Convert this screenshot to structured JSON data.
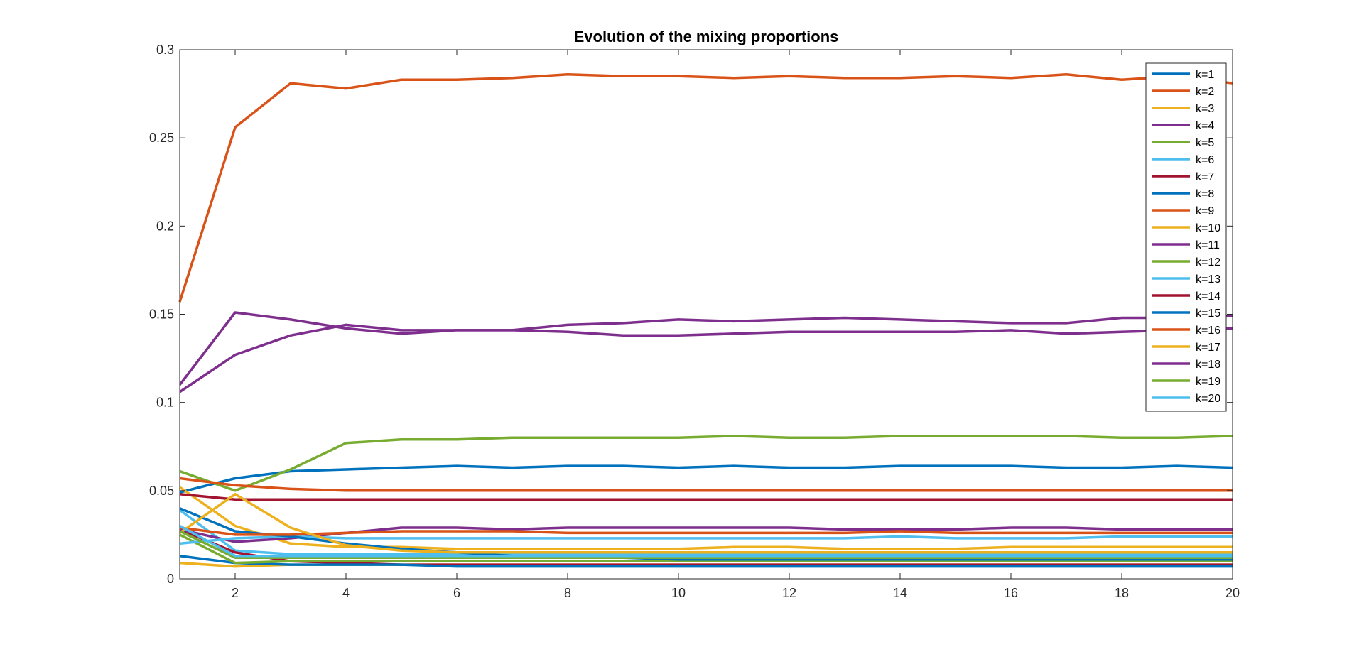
{
  "chart_data": {
    "type": "line",
    "title": "Evolution of the mixing proportions",
    "xlabel": "",
    "ylabel": "",
    "xlim": [
      1,
      20
    ],
    "ylim": [
      0,
      0.3
    ],
    "xticks": [
      2,
      4,
      6,
      8,
      10,
      12,
      14,
      16,
      18,
      20
    ],
    "yticks": [
      0,
      0.05,
      0.1,
      0.15,
      0.2,
      0.25,
      0.3
    ],
    "ytick_labels": [
      "0",
      "0.05",
      "0.1",
      "0.15",
      "0.2",
      "0.25",
      "0.3"
    ],
    "grid": false,
    "legend_position": "top-right",
    "x": [
      1,
      2,
      3,
      4,
      5,
      6,
      7,
      8,
      9,
      10,
      11,
      12,
      13,
      14,
      15,
      16,
      17,
      18,
      19,
      20
    ],
    "series": [
      {
        "name": "k=1",
        "color": "#0072BD",
        "values": [
          0.049,
          0.057,
          0.061,
          0.062,
          0.063,
          0.064,
          0.063,
          0.064,
          0.064,
          0.063,
          0.064,
          0.063,
          0.063,
          0.064,
          0.064,
          0.064,
          0.063,
          0.063,
          0.064,
          0.063
        ]
      },
      {
        "name": "k=2",
        "color": "#D95319",
        "values": [
          0.157,
          0.256,
          0.281,
          0.278,
          0.283,
          0.283,
          0.284,
          0.286,
          0.285,
          0.285,
          0.284,
          0.285,
          0.284,
          0.284,
          0.285,
          0.284,
          0.286,
          0.283,
          0.285,
          0.281
        ]
      },
      {
        "name": "k=3",
        "color": "#EDB120",
        "values": [
          0.009,
          0.007,
          0.008,
          0.008,
          0.008,
          0.008,
          0.008,
          0.008,
          0.008,
          0.008,
          0.008,
          0.008,
          0.008,
          0.008,
          0.008,
          0.008,
          0.008,
          0.008,
          0.008,
          0.008
        ]
      },
      {
        "name": "k=4",
        "color": "#7E2F8E",
        "values": [
          0.106,
          0.127,
          0.138,
          0.144,
          0.141,
          0.141,
          0.141,
          0.14,
          0.138,
          0.138,
          0.139,
          0.14,
          0.14,
          0.14,
          0.14,
          0.141,
          0.139,
          0.14,
          0.141,
          0.142
        ]
      },
      {
        "name": "k=5",
        "color": "#77AC30",
        "values": [
          0.061,
          0.05,
          0.062,
          0.077,
          0.079,
          0.079,
          0.08,
          0.08,
          0.08,
          0.08,
          0.081,
          0.08,
          0.08,
          0.081,
          0.081,
          0.081,
          0.081,
          0.08,
          0.08,
          0.081
        ]
      },
      {
        "name": "k=6",
        "color": "#4DBEEE",
        "values": [
          0.039,
          0.016,
          0.014,
          0.014,
          0.014,
          0.014,
          0.014,
          0.014,
          0.014,
          0.014,
          0.014,
          0.014,
          0.014,
          0.014,
          0.014,
          0.014,
          0.014,
          0.014,
          0.014,
          0.014
        ]
      },
      {
        "name": "k=7",
        "color": "#A2142F",
        "values": [
          0.028,
          0.015,
          0.01,
          0.009,
          0.008,
          0.008,
          0.008,
          0.008,
          0.008,
          0.008,
          0.008,
          0.008,
          0.008,
          0.008,
          0.008,
          0.008,
          0.008,
          0.008,
          0.008,
          0.008
        ]
      },
      {
        "name": "k=8",
        "color": "#0072BD",
        "values": [
          0.013,
          0.009,
          0.008,
          0.008,
          0.008,
          0.007,
          0.007,
          0.007,
          0.007,
          0.007,
          0.007,
          0.007,
          0.007,
          0.007,
          0.007,
          0.007,
          0.007,
          0.007,
          0.007,
          0.007
        ]
      },
      {
        "name": "k=9",
        "color": "#D95319",
        "values": [
          0.057,
          0.053,
          0.051,
          0.05,
          0.05,
          0.05,
          0.05,
          0.05,
          0.05,
          0.05,
          0.05,
          0.05,
          0.05,
          0.05,
          0.05,
          0.05,
          0.05,
          0.05,
          0.05,
          0.05
        ]
      },
      {
        "name": "k=10",
        "color": "#EDB120",
        "values": [
          0.052,
          0.03,
          0.02,
          0.018,
          0.018,
          0.017,
          0.017,
          0.017,
          0.017,
          0.017,
          0.018,
          0.018,
          0.017,
          0.017,
          0.017,
          0.018,
          0.018,
          0.018,
          0.018,
          0.018
        ]
      },
      {
        "name": "k=11",
        "color": "#7E2F8E",
        "values": [
          0.028,
          0.021,
          0.023,
          0.026,
          0.029,
          0.029,
          0.028,
          0.029,
          0.029,
          0.029,
          0.029,
          0.029,
          0.028,
          0.028,
          0.028,
          0.029,
          0.029,
          0.028,
          0.028,
          0.028
        ]
      },
      {
        "name": "k=12",
        "color": "#77AC30",
        "values": [
          0.025,
          0.009,
          0.01,
          0.01,
          0.01,
          0.01,
          0.01,
          0.01,
          0.01,
          0.01,
          0.01,
          0.01,
          0.01,
          0.01,
          0.01,
          0.01,
          0.01,
          0.01,
          0.01,
          0.01
        ]
      },
      {
        "name": "k=13",
        "color": "#4DBEEE",
        "values": [
          0.02,
          0.023,
          0.024,
          0.023,
          0.023,
          0.023,
          0.023,
          0.023,
          0.023,
          0.023,
          0.023,
          0.023,
          0.023,
          0.024,
          0.023,
          0.023,
          0.023,
          0.024,
          0.024,
          0.024
        ]
      },
      {
        "name": "k=14",
        "color": "#A2142F",
        "values": [
          0.048,
          0.045,
          0.045,
          0.045,
          0.045,
          0.045,
          0.045,
          0.045,
          0.045,
          0.045,
          0.045,
          0.045,
          0.045,
          0.045,
          0.045,
          0.045,
          0.045,
          0.045,
          0.045,
          0.045
        ]
      },
      {
        "name": "k=15",
        "color": "#0072BD",
        "values": [
          0.04,
          0.027,
          0.024,
          0.02,
          0.017,
          0.015,
          0.013,
          0.012,
          0.012,
          0.011,
          0.011,
          0.011,
          0.011,
          0.011,
          0.011,
          0.011,
          0.011,
          0.011,
          0.011,
          0.011
        ]
      },
      {
        "name": "k=16",
        "color": "#D95319",
        "values": [
          0.029,
          0.025,
          0.025,
          0.026,
          0.027,
          0.027,
          0.027,
          0.026,
          0.026,
          0.026,
          0.026,
          0.026,
          0.026,
          0.027,
          0.026,
          0.026,
          0.026,
          0.026,
          0.026,
          0.026
        ]
      },
      {
        "name": "k=17",
        "color": "#EDB120",
        "values": [
          0.026,
          0.048,
          0.029,
          0.019,
          0.016,
          0.015,
          0.015,
          0.015,
          0.015,
          0.015,
          0.015,
          0.015,
          0.015,
          0.015,
          0.015,
          0.015,
          0.015,
          0.015,
          0.015,
          0.015
        ]
      },
      {
        "name": "k=18",
        "color": "#7E2F8E",
        "values": [
          0.11,
          0.151,
          0.147,
          0.142,
          0.139,
          0.141,
          0.141,
          0.144,
          0.145,
          0.147,
          0.146,
          0.147,
          0.148,
          0.147,
          0.146,
          0.145,
          0.145,
          0.148,
          0.148,
          0.149
        ]
      },
      {
        "name": "k=19",
        "color": "#77AC30",
        "values": [
          0.027,
          0.012,
          0.012,
          0.012,
          0.012,
          0.012,
          0.012,
          0.012,
          0.012,
          0.012,
          0.012,
          0.012,
          0.012,
          0.012,
          0.012,
          0.012,
          0.012,
          0.012,
          0.012,
          0.012
        ]
      },
      {
        "name": "k=20",
        "color": "#4DBEEE",
        "values": [
          0.03,
          0.013,
          0.013,
          0.013,
          0.013,
          0.013,
          0.013,
          0.013,
          0.013,
          0.013,
          0.013,
          0.013,
          0.013,
          0.013,
          0.013,
          0.013,
          0.013,
          0.013,
          0.013,
          0.013
        ]
      }
    ]
  }
}
